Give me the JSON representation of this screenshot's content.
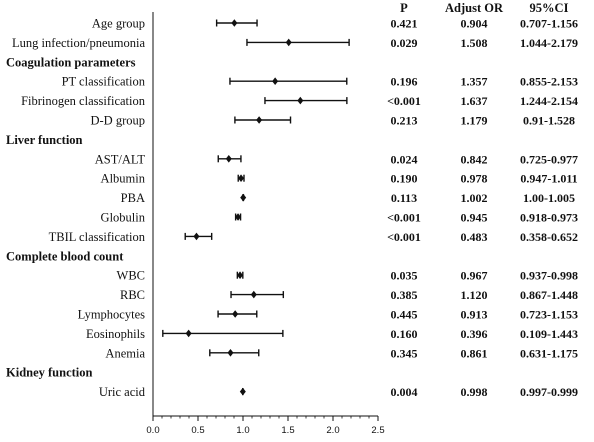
{
  "chart_data": {
    "type": "forest",
    "title": "",
    "xlabel": "",
    "ylabel": "",
    "xlim": [
      0,
      2.5
    ],
    "xticks": [
      "0.0",
      "0.5",
      "1.0",
      "1.5",
      "2.0",
      "2.5"
    ],
    "xtick_values": [
      0,
      0.5,
      1.0,
      1.5,
      2.0,
      2.5
    ],
    "grid": false,
    "columns": {
      "p": "P",
      "or": "Adjust OR",
      "ci": "95%CI"
    },
    "rows": [
      {
        "label": "Age group",
        "is_group": false,
        "or": 0.904,
        "lo": 0.707,
        "hi": 1.156,
        "p_text": "0.421",
        "or_text": "0.904",
        "ci_text": "0.707-1.156"
      },
      {
        "label": "Lung infection/pneumonia",
        "is_group": false,
        "or": 1.508,
        "lo": 1.044,
        "hi": 2.179,
        "p_text": "0.029",
        "or_text": "1.508",
        "ci_text": "1.044-2.179"
      },
      {
        "label": "Coagulation parameters",
        "is_group": true
      },
      {
        "label": "PT classification",
        "is_group": false,
        "or": 1.357,
        "lo": 0.855,
        "hi": 2.153,
        "p_text": "0.196",
        "or_text": "1.357",
        "ci_text": "0.855-2.153"
      },
      {
        "label": "Fibrinogen classification",
        "is_group": false,
        "or": 1.637,
        "lo": 1.244,
        "hi": 2.154,
        "p_text": "<0.001",
        "or_text": "1.637",
        "ci_text": "1.244-2.154"
      },
      {
        "label": "D-D group",
        "is_group": false,
        "or": 1.179,
        "lo": 0.91,
        "hi": 1.528,
        "p_text": "0.213",
        "or_text": "1.179",
        "ci_text": "0.91-1.528"
      },
      {
        "label": "Liver function",
        "is_group": true
      },
      {
        "label": "AST/ALT",
        "is_group": false,
        "or": 0.842,
        "lo": 0.725,
        "hi": 0.977,
        "p_text": "0.024",
        "or_text": "0.842",
        "ci_text": "0.725-0.977"
      },
      {
        "label": "Albumin",
        "is_group": false,
        "or": 0.978,
        "lo": 0.947,
        "hi": 1.011,
        "p_text": "0.190",
        "or_text": "0.978",
        "ci_text": "0.947-1.011"
      },
      {
        "label": "PBA",
        "is_group": false,
        "or": 1.002,
        "lo": 1.0,
        "hi": 1.005,
        "p_text": "0.113",
        "or_text": "1.002",
        "ci_text": "1.00-1.005"
      },
      {
        "label": "Globulin",
        "is_group": false,
        "or": 0.945,
        "lo": 0.918,
        "hi": 0.973,
        "p_text": "<0.001",
        "or_text": "0.945",
        "ci_text": "0.918-0.973"
      },
      {
        "label": "TBIL classification",
        "is_group": false,
        "or": 0.483,
        "lo": 0.358,
        "hi": 0.652,
        "p_text": "<0.001",
        "or_text": "0.483",
        "ci_text": "0.358-0.652"
      },
      {
        "label": "Complete blood count",
        "is_group": true
      },
      {
        "label": "WBC",
        "is_group": false,
        "or": 0.967,
        "lo": 0.937,
        "hi": 0.998,
        "p_text": "0.035",
        "or_text": "0.967",
        "ci_text": "0.937-0.998"
      },
      {
        "label": "RBC",
        "is_group": false,
        "or": 1.12,
        "lo": 0.867,
        "hi": 1.448,
        "p_text": "0.385",
        "or_text": "1.120",
        "ci_text": "0.867-1.448"
      },
      {
        "label": "Lymphocytes",
        "is_group": false,
        "or": 0.913,
        "lo": 0.723,
        "hi": 1.153,
        "p_text": "0.445",
        "or_text": "0.913",
        "ci_text": "0.723-1.153"
      },
      {
        "label": "Eosinophils",
        "is_group": false,
        "or": 0.396,
        "lo": 0.109,
        "hi": 1.443,
        "p_text": "0.160",
        "or_text": "0.396",
        "ci_text": "0.109-1.443"
      },
      {
        "label": "Anemia",
        "is_group": false,
        "or": 0.861,
        "lo": 0.631,
        "hi": 1.175,
        "p_text": "0.345",
        "or_text": "0.861",
        "ci_text": "0.631-1.175"
      },
      {
        "label": "Kidney function",
        "is_group": true
      },
      {
        "label": "Uric acid",
        "is_group": false,
        "or": 0.998,
        "lo": 0.997,
        "hi": 0.999,
        "p_text": "0.004",
        "or_text": "0.998",
        "ci_text": "0.997-0.999"
      }
    ]
  }
}
